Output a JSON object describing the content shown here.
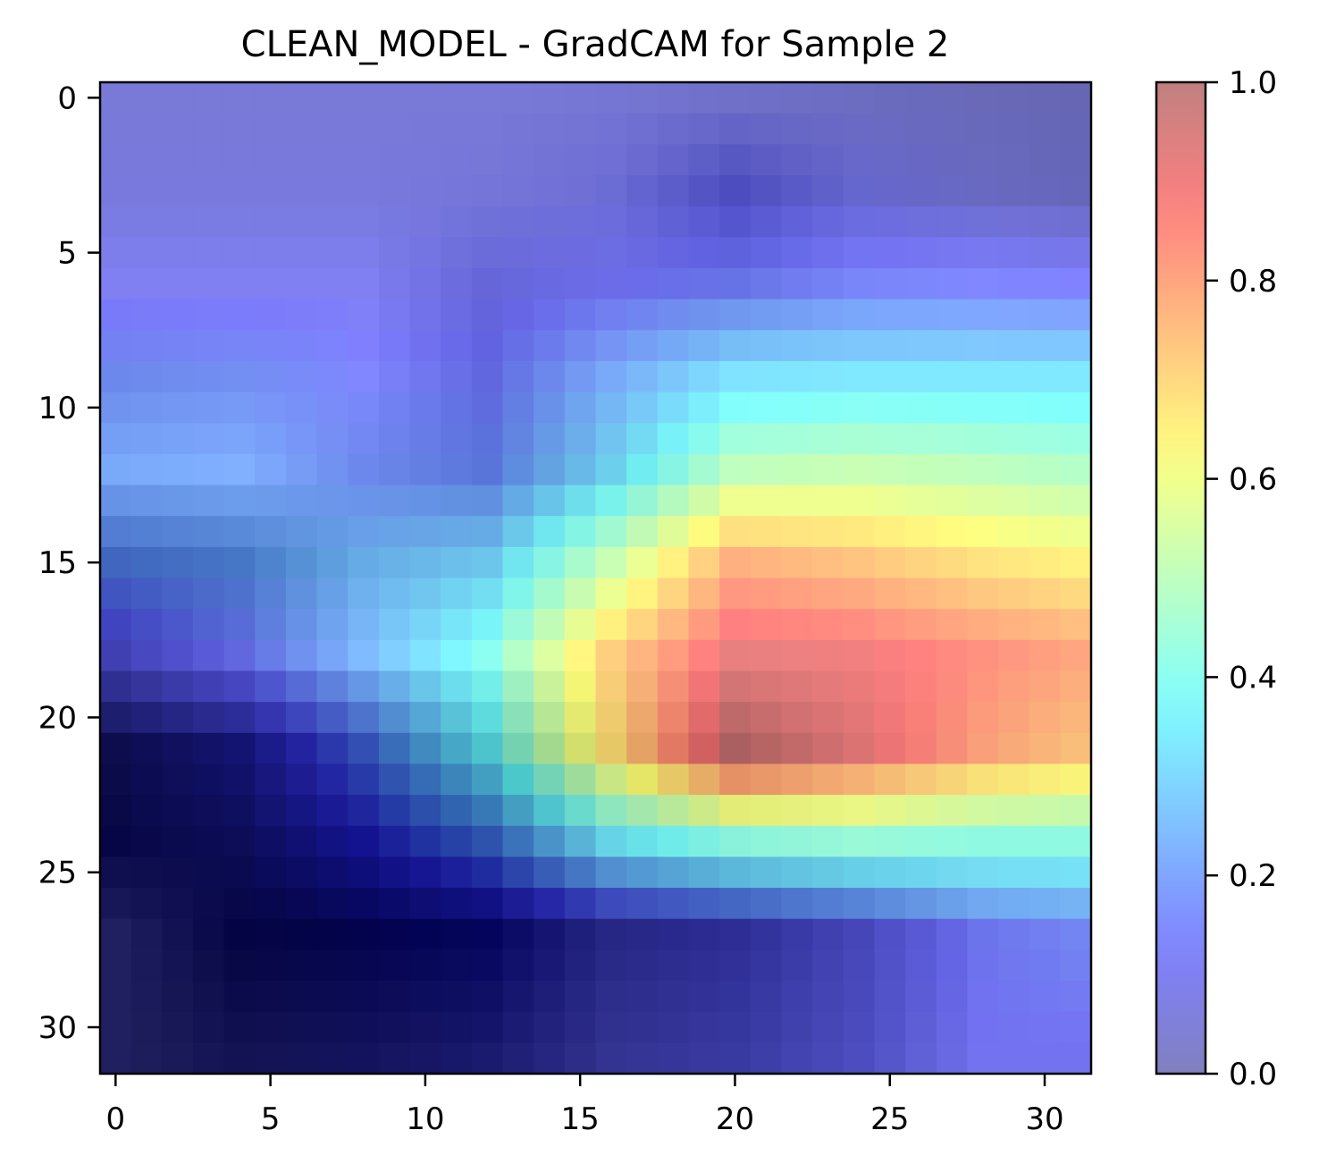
{
  "chart_data": {
    "type": "heatmap",
    "title": "CLEAN_MODEL - GradCAM for Sample 2",
    "xlabel": "",
    "ylabel": "",
    "grid_size": [
      32,
      32
    ],
    "xlim": [
      -0.5,
      31.5
    ],
    "ylim": [
      31.5,
      -0.5
    ],
    "x_ticks": [
      0,
      5,
      10,
      15,
      20,
      25,
      30
    ],
    "y_ticks": [
      0,
      5,
      10,
      15,
      20,
      25,
      30
    ],
    "x_tick_labels": [
      "0",
      "5",
      "10",
      "15",
      "20",
      "25",
      "30"
    ],
    "y_tick_labels": [
      "0",
      "5",
      "10",
      "15",
      "20",
      "25",
      "30"
    ],
    "grid": false,
    "colormap": "jet",
    "overlay_alpha": 0.5,
    "colorbar": {
      "range": [
        0.0,
        1.0
      ],
      "ticks": [
        0.0,
        0.2,
        0.4,
        0.6,
        0.8,
        1.0
      ],
      "tick_labels": [
        "0.0",
        "0.2",
        "0.4",
        "0.6",
        "0.8",
        "1.0"
      ],
      "placement": "right"
    },
    "underlying_image_description": "dark region in lower-left, light upper area",
    "gradcam_rows_sampled": [
      0,
      3,
      6,
      9,
      12,
      15,
      18,
      21,
      24,
      27,
      31
    ],
    "gradcam_cols_sampled": [
      0,
      4,
      8,
      12,
      16,
      20,
      24,
      28,
      31
    ],
    "gradcam_samples": [
      [
        0.06,
        0.06,
        0.06,
        0.06,
        0.06,
        0.05,
        0.04,
        0.03,
        0.03
      ],
      [
        0.07,
        0.07,
        0.07,
        0.07,
        0.08,
        0.1,
        0.08,
        0.05,
        0.04
      ],
      [
        0.1,
        0.1,
        0.1,
        0.1,
        0.12,
        0.15,
        0.15,
        0.14,
        0.13
      ],
      [
        0.18,
        0.18,
        0.14,
        0.14,
        0.22,
        0.32,
        0.33,
        0.33,
        0.33
      ],
      [
        0.22,
        0.22,
        0.18,
        0.18,
        0.32,
        0.5,
        0.52,
        0.5,
        0.48
      ],
      [
        0.2,
        0.22,
        0.26,
        0.3,
        0.52,
        0.78,
        0.74,
        0.68,
        0.65
      ],
      [
        0.1,
        0.14,
        0.24,
        0.4,
        0.72,
        0.92,
        0.9,
        0.84,
        0.8
      ],
      [
        0.0,
        0.06,
        0.18,
        0.36,
        0.68,
        0.98,
        0.92,
        0.8,
        0.74
      ],
      [
        0.0,
        0.02,
        0.12,
        0.2,
        0.34,
        0.42,
        0.44,
        0.42,
        0.42
      ],
      [
        0.0,
        0.0,
        0.02,
        0.05,
        0.06,
        0.08,
        0.1,
        0.14,
        0.16
      ],
      [
        0.0,
        0.0,
        0.02,
        0.04,
        0.06,
        0.08,
        0.1,
        0.12,
        0.12
      ]
    ],
    "image_brightness_samples": [
      [
        0.95,
        0.95,
        0.95,
        0.95,
        0.92,
        0.88,
        0.85,
        0.82,
        0.8
      ],
      [
        0.95,
        0.95,
        0.95,
        0.92,
        0.85,
        0.6,
        0.8,
        0.82,
        0.8
      ],
      [
        1.0,
        1.0,
        1.0,
        0.8,
        0.85,
        0.8,
        0.95,
        1.0,
        1.0
      ],
      [
        0.85,
        0.9,
        1.0,
        0.75,
        0.95,
        1.0,
        1.0,
        1.0,
        1.0
      ],
      [
        0.95,
        1.0,
        0.85,
        0.7,
        0.85,
        1.0,
        1.0,
        1.0,
        1.0
      ],
      [
        0.5,
        0.55,
        0.8,
        0.85,
        1.0,
        1.0,
        1.0,
        1.0,
        1.0
      ],
      [
        0.5,
        0.75,
        1.0,
        1.0,
        1.0,
        1.0,
        1.0,
        1.0,
        1.0
      ],
      [
        0.1,
        0.15,
        0.4,
        0.6,
        0.8,
        0.75,
        0.9,
        0.95,
        0.95
      ],
      [
        0.05,
        0.1,
        0.15,
        0.35,
        0.8,
        0.9,
        0.95,
        0.95,
        0.95
      ],
      [
        0.25,
        0.03,
        0.02,
        0.03,
        0.3,
        0.35,
        0.55,
        0.85,
        0.9
      ],
      [
        0.25,
        0.15,
        0.15,
        0.2,
        0.4,
        0.45,
        0.6,
        0.9,
        0.9
      ]
    ]
  }
}
